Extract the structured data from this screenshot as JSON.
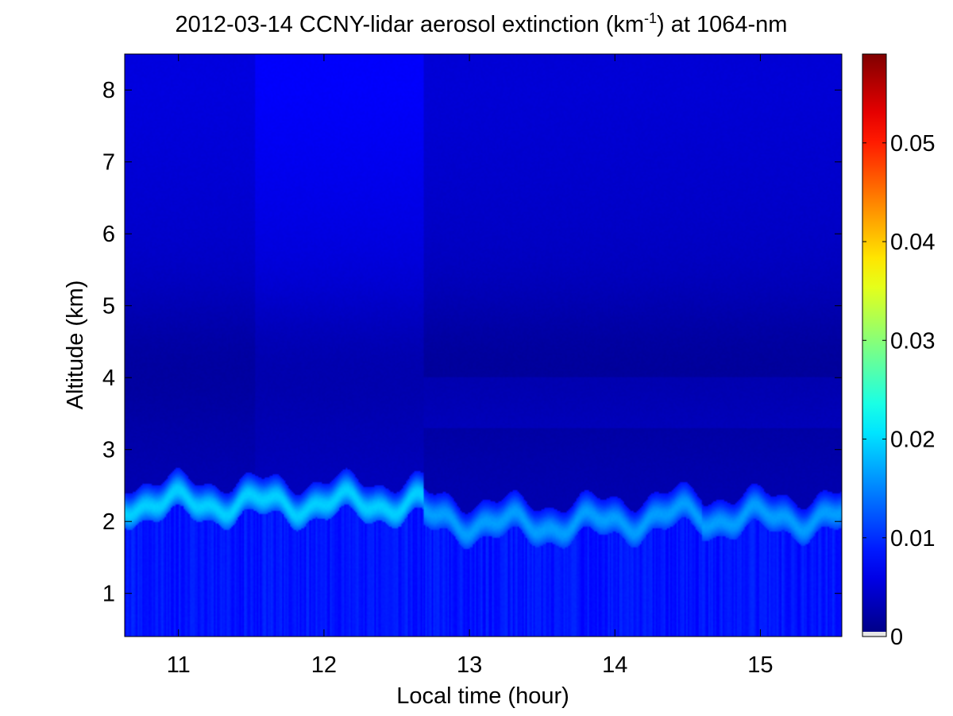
{
  "chart_data": {
    "type": "heatmap",
    "title_main": "2012-03-14 CCNY-lidar aerosol extinction (km",
    "title_sup": "-1",
    "title_tail": ") at 1064-nm",
    "xlabel": "Local time (hour)",
    "ylabel": "Altitude (km)",
    "xlim": [
      10.63,
      15.56
    ],
    "ylim": [
      0.4,
      8.5
    ],
    "xticks": [
      11,
      12,
      13,
      14,
      15
    ],
    "xtick_labels": [
      "11",
      "12",
      "13",
      "14",
      "15"
    ],
    "yticks": [
      1,
      2,
      3,
      4,
      5,
      6,
      7,
      8
    ],
    "ytick_labels": [
      "1",
      "2",
      "3",
      "4",
      "5",
      "6",
      "7",
      "8"
    ],
    "colormap": "jet",
    "colorbar": {
      "range": [
        0,
        0.059
      ],
      "ticks": [
        0,
        0.01,
        0.02,
        0.03,
        0.04,
        0.05
      ],
      "tick_labels": [
        "0",
        "0.01",
        "0.02",
        "0.03",
        "0.04",
        "0.05"
      ]
    },
    "grid": false,
    "field_description": {
      "time_segments": [
        {
          "x_range": [
            10.63,
            11.53
          ],
          "background_upper": 0.0055,
          "boundary_layer_top": 2.5
        },
        {
          "x_range": [
            11.53,
            12.68
          ],
          "background_upper": 0.0072,
          "boundary_layer_top": 2.5
        },
        {
          "x_range": [
            12.68,
            15.56
          ],
          "background_upper": 0.005,
          "boundary_layer_top": 2.3
        }
      ],
      "layer_peak_extinction": 0.013,
      "near_surface_extinction": 0.0085,
      "mid_troposphere_minimum": 0.0015
    }
  }
}
